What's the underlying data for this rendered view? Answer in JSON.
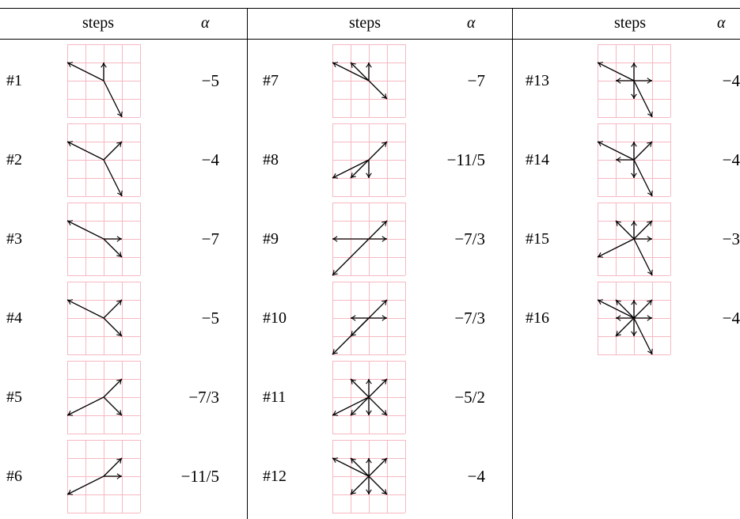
{
  "header": {
    "steps_label": "steps",
    "alpha_label": "α"
  },
  "rows": [
    {
      "id": "#1",
      "alpha": "−5",
      "steps": [
        [
          -2,
          1
        ],
        [
          0,
          1
        ],
        [
          1,
          -2
        ]
      ]
    },
    {
      "id": "#2",
      "alpha": "−4",
      "steps": [
        [
          -2,
          1
        ],
        [
          1,
          1
        ],
        [
          1,
          -2
        ]
      ]
    },
    {
      "id": "#3",
      "alpha": "−7",
      "steps": [
        [
          -2,
          1
        ],
        [
          1,
          0
        ],
        [
          1,
          -1
        ]
      ]
    },
    {
      "id": "#4",
      "alpha": "−5",
      "steps": [
        [
          -2,
          1
        ],
        [
          1,
          1
        ],
        [
          1,
          -1
        ]
      ]
    },
    {
      "id": "#5",
      "alpha": "−7/3",
      "steps": [
        [
          -2,
          -1
        ],
        [
          1,
          1
        ],
        [
          1,
          -1
        ]
      ]
    },
    {
      "id": "#6",
      "alpha": "−11/5",
      "steps": [
        [
          -2,
          -1
        ],
        [
          1,
          1
        ],
        [
          1,
          0
        ]
      ]
    },
    {
      "id": "#7",
      "alpha": "−7",
      "steps": [
        [
          -2,
          1
        ],
        [
          -1,
          1
        ],
        [
          0,
          1
        ],
        [
          1,
          -1
        ]
      ]
    },
    {
      "id": "#8",
      "alpha": "−11/5",
      "steps": [
        [
          -2,
          -1
        ],
        [
          -1,
          -1
        ],
        [
          0,
          -1
        ],
        [
          1,
          1
        ]
      ]
    },
    {
      "id": "#9",
      "alpha": "−7/3",
      "steps": [
        [
          -2,
          0
        ],
        [
          1,
          0
        ],
        [
          -2,
          -2
        ],
        [
          1,
          1
        ]
      ]
    },
    {
      "id": "#10",
      "alpha": "−7/3",
      "steps": [
        [
          -1,
          0
        ],
        [
          1,
          0
        ],
        [
          -1,
          -1
        ],
        [
          1,
          1
        ],
        [
          -2,
          -2
        ]
      ]
    },
    {
      "id": "#11",
      "alpha": "−5/2",
      "steps": [
        [
          -2,
          -1
        ],
        [
          -1,
          -1
        ],
        [
          0,
          -1
        ],
        [
          1,
          -1
        ],
        [
          -1,
          1
        ],
        [
          0,
          1
        ],
        [
          1,
          1
        ]
      ]
    },
    {
      "id": "#12",
      "alpha": "−4",
      "steps": [
        [
          -2,
          1
        ],
        [
          -1,
          1
        ],
        [
          0,
          1
        ],
        [
          1,
          1
        ],
        [
          1,
          -1
        ],
        [
          0,
          -1
        ],
        [
          -1,
          -1
        ]
      ]
    },
    {
      "id": "#13",
      "alpha": "−4",
      "steps": [
        [
          -2,
          1
        ],
        [
          -1,
          0
        ],
        [
          1,
          0
        ],
        [
          0,
          1
        ],
        [
          0,
          -1
        ],
        [
          1,
          -2
        ]
      ]
    },
    {
      "id": "#14",
      "alpha": "−4",
      "steps": [
        [
          -2,
          1
        ],
        [
          -1,
          0
        ],
        [
          0,
          1
        ],
        [
          1,
          1
        ],
        [
          0,
          -1
        ],
        [
          1,
          -2
        ]
      ]
    },
    {
      "id": "#15",
      "alpha": "−3",
      "steps": [
        [
          -2,
          -1
        ],
        [
          -1,
          1
        ],
        [
          0,
          1
        ],
        [
          1,
          1
        ],
        [
          1,
          0
        ],
        [
          1,
          -2
        ]
      ]
    },
    {
      "id": "#16",
      "alpha": "−4",
      "steps": [
        [
          -2,
          1
        ],
        [
          -1,
          1
        ],
        [
          0,
          1
        ],
        [
          1,
          1
        ],
        [
          -1,
          0
        ],
        [
          1,
          0
        ],
        [
          -1,
          -1
        ],
        [
          0,
          -1
        ],
        [
          1,
          -2
        ]
      ]
    }
  ]
}
